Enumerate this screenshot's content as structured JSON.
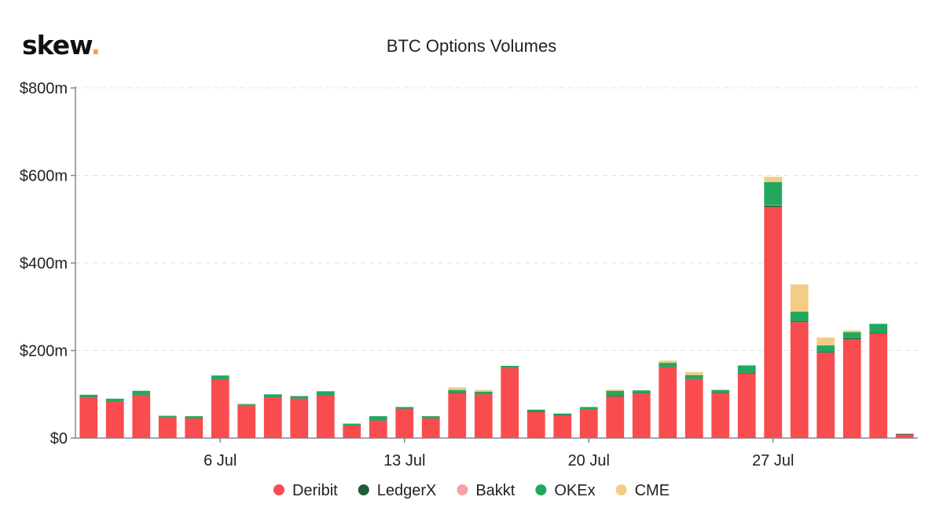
{
  "brand": {
    "name": "skew",
    "dot": "."
  },
  "chart_data": {
    "type": "bar",
    "stacked": true,
    "title": "BTC Options Volumes",
    "xlabel": "",
    "ylabel": "",
    "ylim": [
      0,
      800
    ],
    "yticks": [
      0,
      200,
      400,
      600,
      800
    ],
    "ytick_labels": [
      "$0",
      "$200m",
      "$400m",
      "$600m",
      "$800m"
    ],
    "xtick_labels": [
      {
        "label": "6 Jul",
        "index": 5
      },
      {
        "label": "13 Jul",
        "index": 12
      },
      {
        "label": "20 Jul",
        "index": 19
      },
      {
        "label": "27 Jul",
        "index": 26
      }
    ],
    "grid": true,
    "legend_position": "bottom",
    "categories": [
      "1 Jul",
      "2 Jul",
      "3 Jul",
      "4 Jul",
      "5 Jul",
      "6 Jul",
      "7 Jul",
      "8 Jul",
      "9 Jul",
      "10 Jul",
      "11 Jul",
      "12 Jul",
      "13 Jul",
      "14 Jul",
      "15 Jul",
      "16 Jul",
      "17 Jul",
      "18 Jul",
      "19 Jul",
      "20 Jul",
      "21 Jul",
      "22 Jul",
      "23 Jul",
      "24 Jul",
      "25 Jul",
      "26 Jul",
      "27 Jul",
      "28 Jul",
      "29 Jul",
      "30 Jul",
      "31 Jul",
      "1 Aug"
    ],
    "series": [
      {
        "name": "Deribit",
        "color": "#f84c4f",
        "values": [
          93,
          83,
          98,
          47,
          45,
          133,
          73,
          93,
          90,
          97,
          28,
          40,
          67,
          45,
          103,
          100,
          160,
          60,
          52,
          65,
          95,
          102,
          162,
          135,
          103,
          148,
          528,
          265,
          195,
          226,
          239,
          8
        ]
      },
      {
        "name": "LedgerX",
        "color": "#1b5e3a",
        "values": [
          1,
          1,
          1,
          1,
          1,
          1,
          1,
          1,
          1,
          1,
          1,
          1,
          1,
          1,
          1,
          1,
          1,
          1,
          1,
          1,
          1,
          1,
          1,
          1,
          1,
          1,
          3,
          2,
          2,
          2,
          2,
          1
        ]
      },
      {
        "name": "Bakkt",
        "color": "#f7a1a3",
        "values": [
          0,
          0,
          0,
          0,
          0,
          0,
          0,
          0,
          0,
          0,
          0,
          0,
          0,
          0,
          0,
          0,
          0,
          0,
          0,
          0,
          0,
          0,
          0,
          0,
          0,
          0,
          1,
          0,
          0,
          0,
          0,
          0
        ]
      },
      {
        "name": "OKEx",
        "color": "#22a85d",
        "values": [
          5,
          6,
          9,
          3,
          4,
          9,
          3,
          6,
          5,
          9,
          4,
          9,
          3,
          4,
          6,
          5,
          4,
          4,
          3,
          5,
          12,
          6,
          9,
          8,
          6,
          17,
          53,
          22,
          15,
          14,
          20,
          1
        ]
      },
      {
        "name": "CME",
        "color": "#f1cd86",
        "values": [
          0,
          0,
          0,
          0,
          0,
          0,
          2,
          0,
          0,
          0,
          0,
          0,
          0,
          0,
          6,
          4,
          0,
          0,
          0,
          0,
          3,
          0,
          5,
          7,
          0,
          0,
          12,
          62,
          18,
          4,
          0,
          0
        ]
      }
    ]
  }
}
